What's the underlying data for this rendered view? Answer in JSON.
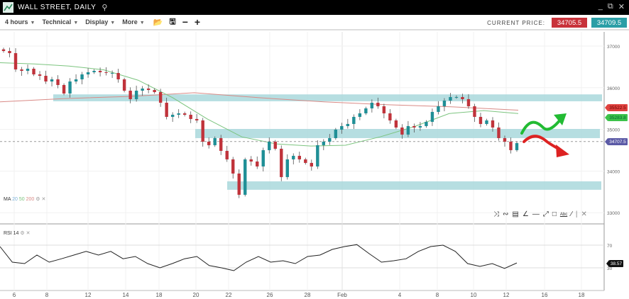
{
  "window": {
    "title": "WALL STREET, DAILY",
    "icons": [
      "chart-logo-icon",
      "search-icon",
      "minimize-icon",
      "popout-icon",
      "close-icon"
    ]
  },
  "toolbar": {
    "timeframe": "4 hours",
    "technical": "Technical",
    "display": "Display",
    "more": "More",
    "current_price_label": "CURRENT PRICE:",
    "sell_price": "34705.5",
    "buy_price": "34709.5"
  },
  "colors": {
    "bull": "#1f8f96",
    "bear": "#c0333b",
    "ma50": "#7cc47f",
    "ma200": "#d98a86",
    "zone": "#a9d8dc",
    "rsi_line": "#222"
  },
  "indicators": {
    "ma_label": "MA",
    "ma_periods": [
      "20",
      "50",
      "200"
    ],
    "rsi_label": "RSI",
    "rsi_period": "14",
    "rsi_value": "38.57"
  },
  "price_tags": {
    "ma200": "35522.5",
    "ma50": "35283.8",
    "last": "34707.5"
  },
  "chart_data": {
    "type": "candlestick",
    "y_ticks": [
      "37000",
      "36000",
      "35000",
      "34000",
      "33000"
    ],
    "ylim": [
      32800,
      37150
    ],
    "x_ticks": [
      "6",
      "8",
      "12",
      "14",
      "18",
      "20",
      "22",
      "26",
      "28",
      "Feb",
      "4",
      "8",
      "10",
      "12",
      "16",
      "18"
    ],
    "closes": [
      36881,
      36830,
      36439,
      36405,
      36456,
      36320,
      36286,
      36150,
      36201,
      36065,
      35861,
      36150,
      36201,
      36320,
      36371,
      36405,
      36371,
      36354,
      36354,
      36201,
      35929,
      35725,
      35929,
      35980,
      35946,
      35895,
      35640,
      35300,
      35351,
      35385,
      35351,
      35249,
      35215,
      34705,
      34620,
      34790,
      34484,
      34280,
      33940,
      33430,
      34280,
      34229,
      34110,
      34501,
      34705,
      34535,
      33855,
      34280,
      34365,
      34280,
      34195,
      34110,
      34620,
      34705,
      34790,
      34994,
      35079,
      35130,
      35300,
      35385,
      35504,
      35640,
      35555,
      35385,
      35215,
      35045,
      34875,
      35079,
      35045,
      35079,
      35181,
      35419,
      35555,
      35691,
      35776,
      35776,
      35725,
      35555,
      35300,
      35130,
      35215,
      35045,
      34790,
      34705,
      34501,
      34671
    ],
    "ma50": [
      36600,
      36570,
      36520,
      36430,
      36180,
      35760,
      35250,
      34820,
      34650,
      34600,
      34620,
      34820,
      35070,
      35380,
      35450,
      35380
    ],
    "ma200": [
      35660,
      35740,
      35790,
      35880,
      35760,
      35660,
      35590,
      35540,
      35460
    ],
    "zones": [
      [
        35675,
        35840
      ],
      [
        34790,
        35010
      ],
      [
        33550,
        33753
      ]
    ],
    "rsi": {
      "ylim": [
        0,
        100
      ],
      "levels": [
        70,
        30
      ],
      "values": [
        67.5,
        40,
        37.5,
        52.5,
        40,
        46,
        52.5,
        59,
        52.5,
        59,
        46,
        50,
        37.5,
        30,
        37.5,
        46,
        50,
        34,
        30,
        25,
        40,
        50,
        40,
        42.5,
        37.5,
        50,
        52.5,
        62.5,
        67.5,
        71,
        55,
        40,
        42.5,
        46,
        59,
        67.5,
        70,
        59,
        37.5,
        32.5,
        37.5,
        29,
        38.57
      ]
    }
  }
}
